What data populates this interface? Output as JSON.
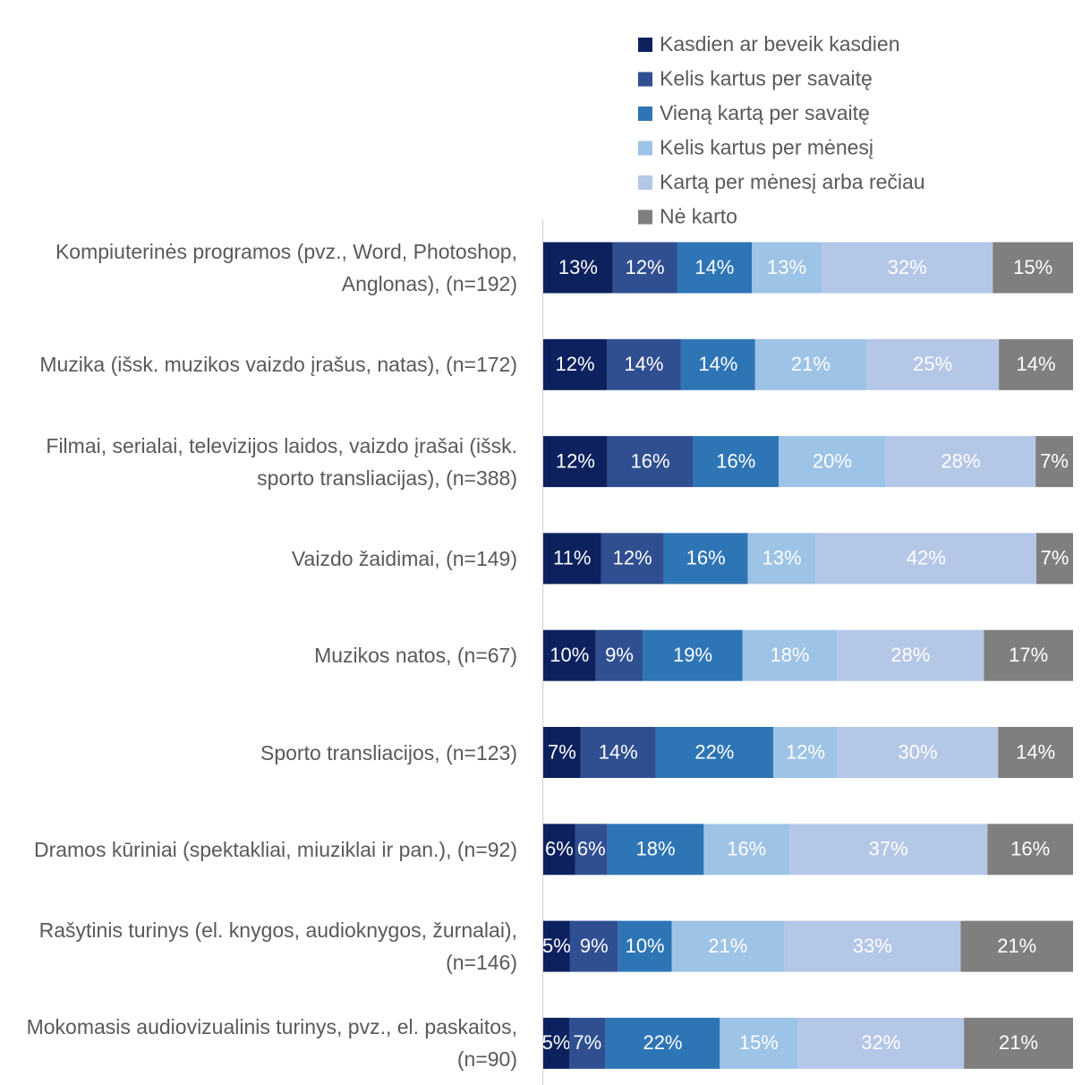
{
  "chart_data": {
    "type": "stacked_bar_horizontal",
    "categories": [
      "Kompiuterinės programos (pvz., Word, Photoshop, Anglonas), (n=192)",
      "Muzika (išsk. muzikos vaizdo įrašus, natas), (n=172)",
      "Filmai, serialai, televizijos laidos, vaizdo įrašai (išsk. sporto transliacijas), (n=388)",
      "Vaizdo žaidimai, (n=149)",
      "Muzikos natos, (n=67)",
      "Sporto transliacijos, (n=123)",
      "Dramos kūriniai (spektakliai, miuziklai ir pan.), (n=92)",
      "Rašytinis turinys (el. knygos, audioknygos, žurnalai), (n=146)",
      "Mokomasis audiovizualinis turinys, pvz., el. paskaitos, (n=90)"
    ],
    "series": [
      {
        "name": "Kasdien ar beveik kasdien",
        "color": "#0c215e",
        "values": [
          13,
          12,
          12,
          11,
          10,
          7,
          6,
          5,
          5
        ],
        "value_labels": [
          "13%",
          "12%",
          "12%",
          "11%",
          "10%",
          "7%",
          "6%",
          "5%",
          "5%"
        ]
      },
      {
        "name": "Kelis kartus per savaitę",
        "color": "#2f4f91",
        "values": [
          12,
          14,
          16,
          12,
          9,
          14,
          6,
          9,
          7
        ],
        "value_labels": [
          "12%",
          "14%",
          "16%",
          "12%",
          "9%",
          "14%",
          "6%",
          "9%",
          "7%"
        ]
      },
      {
        "name": "Vieną kartą per savaitę",
        "color": "#2e75b6",
        "values": [
          14,
          14,
          16,
          16,
          19,
          22,
          18,
          10,
          22
        ],
        "value_labels": [
          "14%",
          "14%",
          "16%",
          "16%",
          "19%",
          "22%",
          "18%",
          "10%",
          "22%"
        ]
      },
      {
        "name": "Kelis kartus per mėnesį",
        "color": "#9dc3e6",
        "values": [
          13,
          21,
          20,
          13,
          18,
          12,
          16,
          21,
          15
        ],
        "value_labels": [
          "13%",
          "21%",
          "20%",
          "13%",
          "18%",
          "12%",
          "16%",
          "21%",
          "15%"
        ]
      },
      {
        "name": "Kartą per mėnesį arba rečiau",
        "color": "#b4c7e7",
        "values": [
          32,
          25,
          28,
          42,
          28,
          30,
          37,
          33,
          32
        ],
        "value_labels": [
          "32%",
          "25%",
          "28%",
          "42%",
          "28%",
          "30%",
          "37%",
          "33%",
          "32%"
        ]
      },
      {
        "name": "Nė karto",
        "color": "#7f7f7f",
        "values": [
          15,
          14,
          7,
          7,
          17,
          14,
          16,
          21,
          21
        ],
        "value_labels": [
          "15%",
          "14%",
          "7%",
          "7%",
          "17%",
          "14%",
          "16%",
          "21%",
          "21%"
        ]
      }
    ],
    "legend": "top"
  }
}
